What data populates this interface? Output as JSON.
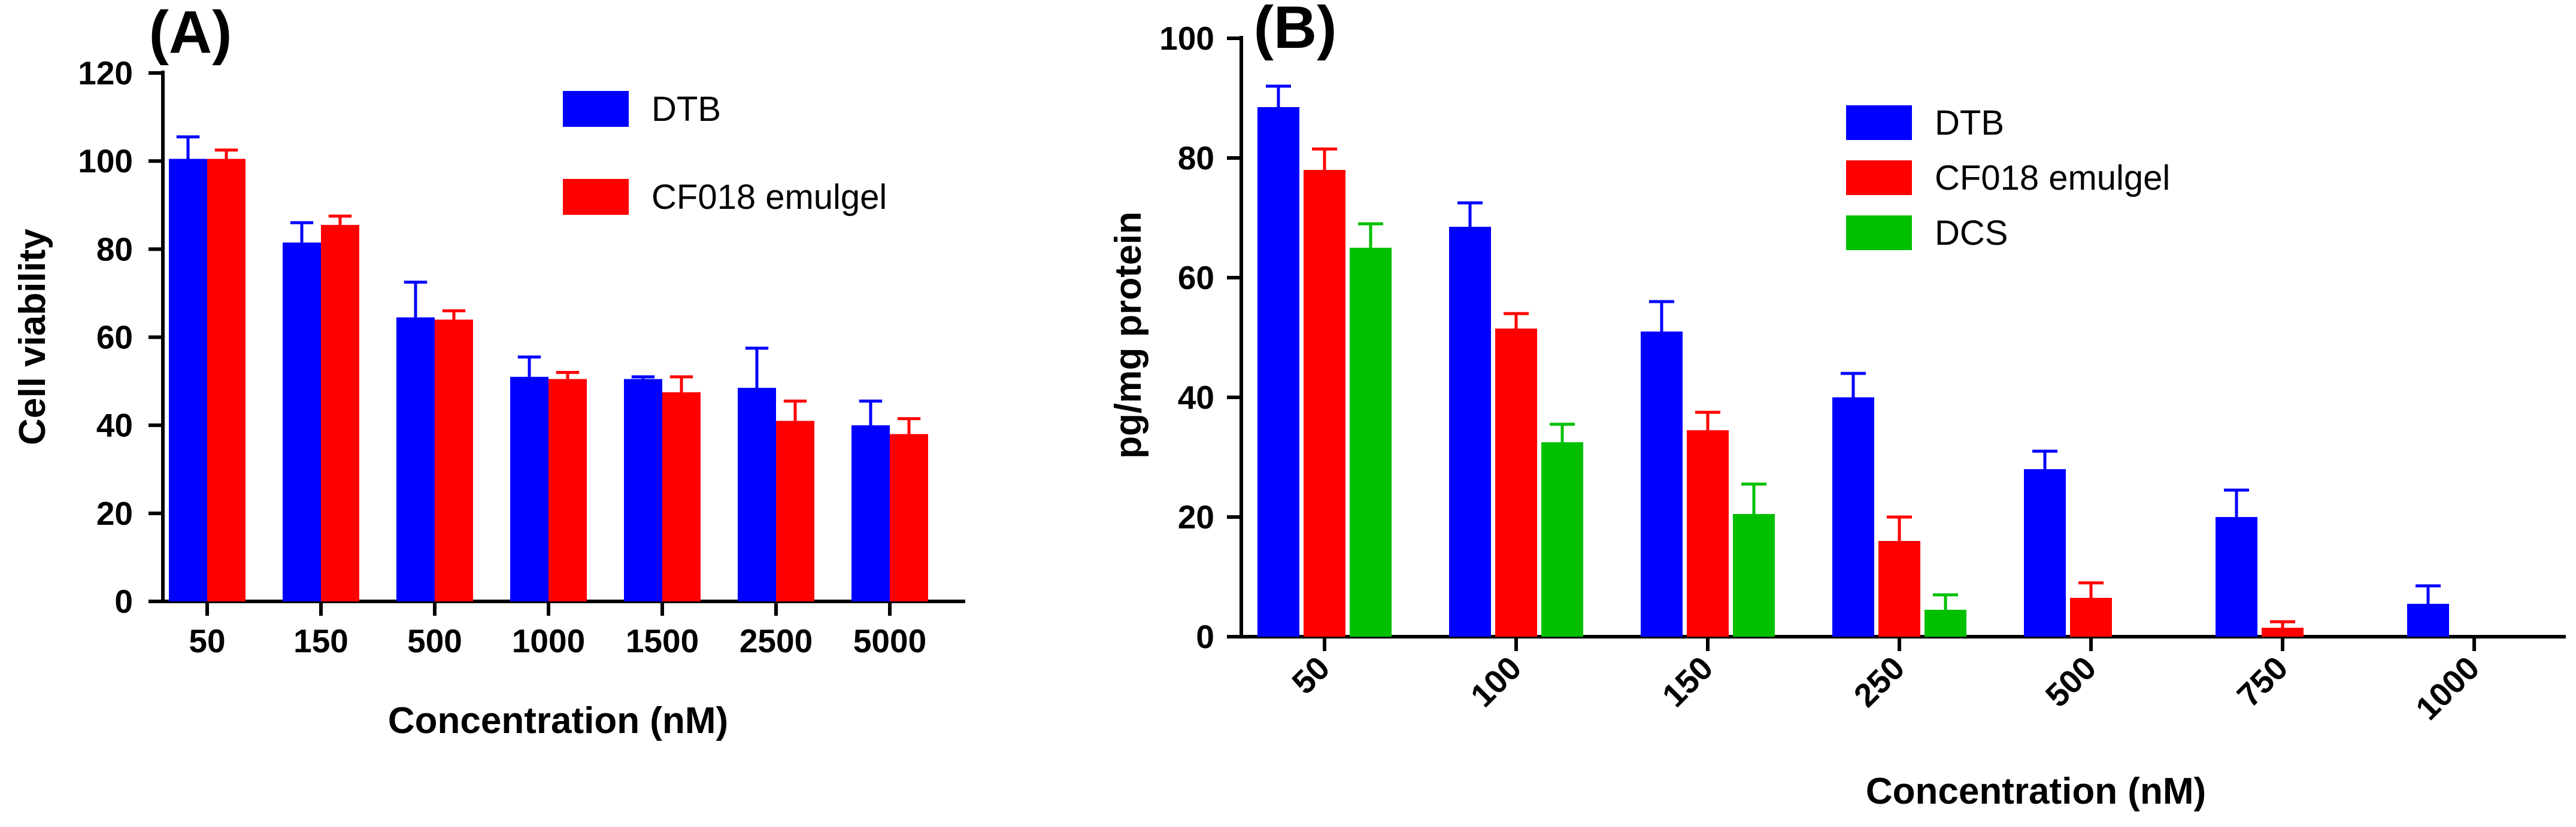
{
  "colors": {
    "DTB": "#0000ff",
    "CF018 emulgel": "#ff0000",
    "DCS": "#00c000",
    "axis": "#000000"
  },
  "chart_data": [
    {
      "type": "bar",
      "panel_label": "(A)",
      "xlabel": "Concentration (nM)",
      "ylabel": "Cell viability",
      "ylim": [
        0,
        120
      ],
      "yticks": [
        "0",
        "20",
        "40",
        "60",
        "80",
        "100",
        "120"
      ],
      "categories": [
        "50",
        "150",
        "500",
        "1000",
        "1500",
        "2500",
        "5000"
      ],
      "legend_position": "top-right",
      "series": [
        {
          "name": "DTB",
          "values": [
            100.5,
            81.5,
            64.5,
            51,
            50.5,
            48.5,
            40
          ],
          "errors": [
            5,
            4.5,
            8,
            4.5,
            0.5,
            9,
            5.5
          ]
        },
        {
          "name": "CF018 emulgel",
          "values": [
            100.5,
            85.5,
            64,
            50.5,
            47.5,
            41,
            38
          ],
          "errors": [
            2,
            2,
            2,
            1.5,
            3.5,
            4.5,
            3.5
          ]
        }
      ]
    },
    {
      "type": "bar",
      "panel_label": "(B)",
      "xlabel": "Concentration (nM)",
      "ylabel": "pg/mg protein",
      "ylim": [
        0,
        100
      ],
      "yticks": [
        "0",
        "20",
        "40",
        "60",
        "80",
        "100"
      ],
      "categories": [
        "50",
        "100",
        "150",
        "250",
        "500",
        "750",
        "1000"
      ],
      "legend_position": "top-right",
      "series": [
        {
          "name": "DTB",
          "values": [
            88.5,
            68.5,
            51,
            40,
            28,
            20,
            5.5
          ],
          "errors": [
            3.5,
            4,
            5,
            4,
            3,
            4.5,
            3
          ]
        },
        {
          "name": "CF018 emulgel",
          "values": [
            78,
            51.5,
            34.5,
            16,
            6.5,
            1.5,
            0
          ],
          "errors": [
            3.5,
            2.5,
            3,
            4,
            2.5,
            1,
            0
          ]
        },
        {
          "name": "DCS",
          "values": [
            65,
            32.5,
            20.5,
            4.5,
            0,
            0,
            0
          ],
          "errors": [
            4,
            3,
            5,
            2.5,
            0,
            0,
            0
          ]
        }
      ]
    }
  ]
}
